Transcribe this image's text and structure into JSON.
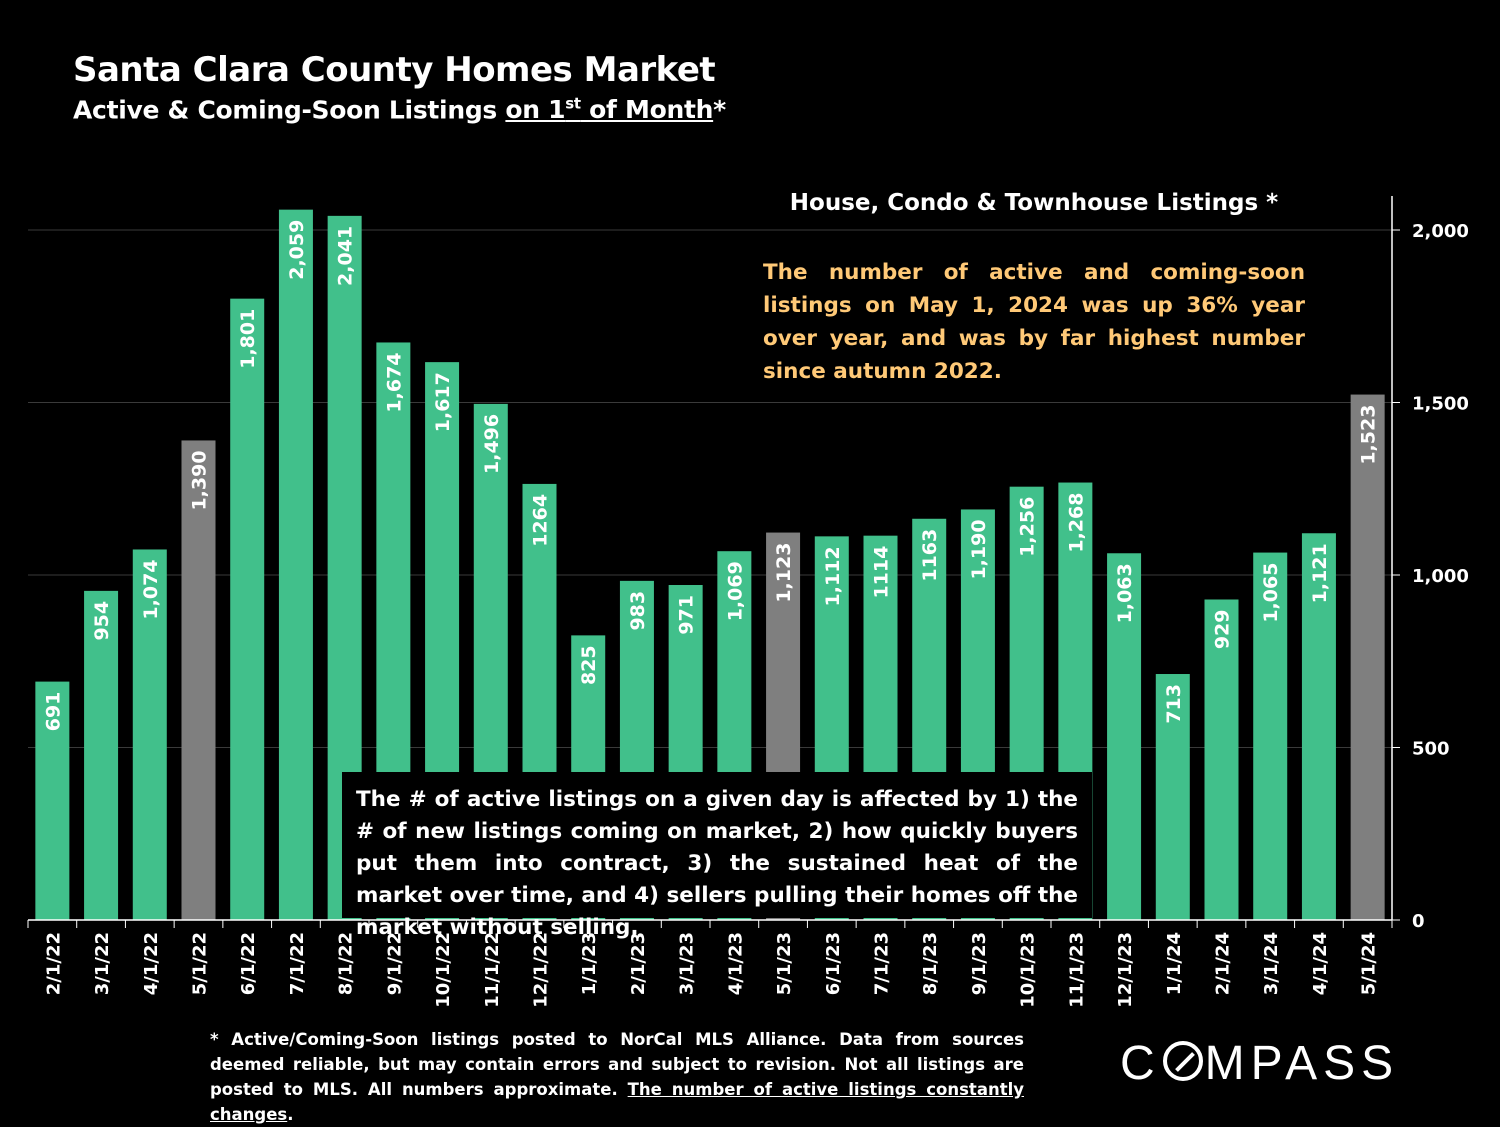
{
  "header": {
    "title": "Santa Clara County Homes Market",
    "subtitle_pre": "Active & Coming-Soon Listings ",
    "subtitle_u1": "on 1",
    "subtitle_sup": "st",
    "subtitle_u2": " of Month",
    "subtitle_post": "*"
  },
  "annotation": "The number of active and coming-soon listings on May 1, 2024 was up 36% year over year, and was by far highest number since autumn 2022.",
  "note_box": "The # of active listings on a given day is affected by 1) the # of new listings coming on market, 2) how quickly buyers put them into contract, 3) the sustained heat of the market over time, and 4) sellers pulling their homes off the market without selling.",
  "footnote": {
    "text": "* Active/Coming-Soon listings posted to NorCal MLS Alliance.  Data from sources deemed reliable, but may contain errors and subject to revision.  Not all listings are posted to MLS. All numbers approximate. ",
    "link": "The number of active listings constantly changes",
    "end": "."
  },
  "logo": {
    "pre": "C",
    "post": "MPASS"
  },
  "chart_data": {
    "type": "bar",
    "title": "House, Condo & Townhouse Listings *",
    "categories": [
      "2/1/22",
      "3/1/22",
      "4/1/22",
      "5/1/22",
      "6/1/22",
      "7/1/22",
      "8/1/22",
      "9/1/22",
      "10/1/22",
      "11/1/22",
      "12/1/22",
      "1/1/23",
      "2/1/23",
      "3/1/23",
      "4/1/23",
      "5/1/23",
      "6/1/23",
      "7/1/23",
      "8/1/23",
      "9/1/23",
      "10/1/23",
      "11/1/23",
      "12/1/23",
      "1/1/24",
      "2/1/24",
      "3/1/24",
      "4/1/24",
      "5/1/24"
    ],
    "values": [
      691,
      954,
      1074,
      1390,
      1801,
      2059,
      2041,
      1674,
      1617,
      1496,
      1264,
      825,
      983,
      971,
      1069,
      1123,
      1112,
      1114,
      1163,
      1190,
      1256,
      1268,
      1063,
      713,
      929,
      1065,
      1121,
      1523
    ],
    "labels": [
      "691",
      "954",
      "1,074",
      "1,390",
      "1,801",
      "2,059",
      "2,041",
      "1,674",
      "1,617",
      "1,496",
      "1264",
      "825",
      "983",
      "971",
      "1,069",
      "1,123",
      "1,112",
      "1114",
      "1163",
      "1,190",
      "1,256",
      "1,268",
      "1,063",
      "713",
      "929",
      "1,065",
      "1,121",
      "1,523"
    ],
    "highlight": [
      false,
      false,
      false,
      true,
      false,
      false,
      false,
      false,
      false,
      false,
      false,
      false,
      false,
      false,
      false,
      true,
      false,
      false,
      false,
      false,
      false,
      false,
      false,
      false,
      false,
      false,
      false,
      true
    ],
    "colors": {
      "bar": "#41c08b",
      "highlight": "#7f7f7f",
      "grid": "#3a3a3a",
      "axis": "#ffffff"
    },
    "yaxis": {
      "position": "right",
      "ticks": [
        0,
        500,
        1000,
        1500,
        2000
      ],
      "tick_labels": [
        "0",
        "500",
        "1,000",
        "1,500",
        "2,000"
      ]
    },
    "ylim": [
      0,
      2000
    ],
    "xlabel": "",
    "ylabel": "",
    "grid": true
  }
}
